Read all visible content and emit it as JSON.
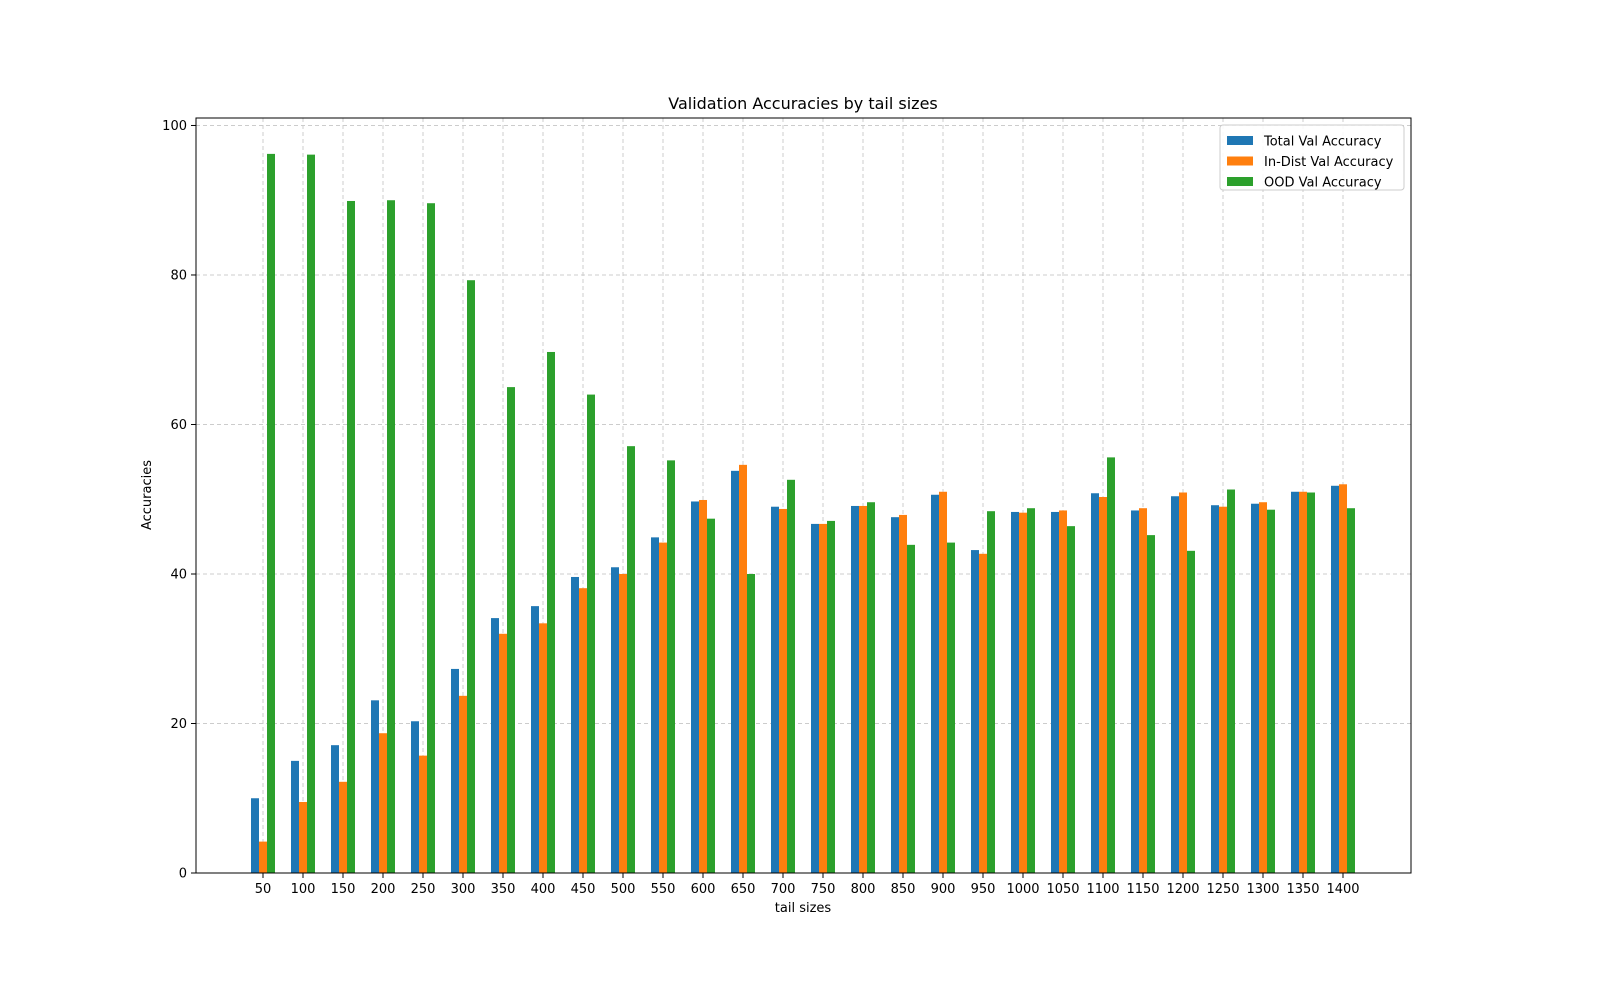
{
  "chart_data": {
    "type": "bar",
    "title": "Validation Accuracies by tail sizes",
    "xlabel": "tail sizes",
    "ylabel": "Accuracies",
    "ylim": [
      0,
      101
    ],
    "yticks": [
      0,
      20,
      40,
      60,
      80,
      100
    ],
    "grid": true,
    "legend_position": "top-right",
    "categories": [
      "50",
      "100",
      "150",
      "200",
      "250",
      "300",
      "350",
      "400",
      "450",
      "500",
      "550",
      "600",
      "650",
      "700",
      "750",
      "800",
      "850",
      "900",
      "950",
      "1000",
      "1050",
      "1100",
      "1150",
      "1200",
      "1250",
      "1300",
      "1350",
      "1400"
    ],
    "series": [
      {
        "name": "Total Val Accuracy",
        "color": "#1f77b4",
        "values": [
          10.0,
          15.0,
          17.1,
          23.1,
          20.3,
          27.3,
          34.1,
          35.7,
          39.6,
          40.9,
          44.9,
          49.7,
          53.8,
          49.0,
          46.7,
          49.1,
          47.6,
          50.6,
          43.2,
          48.3,
          48.3,
          50.8,
          48.5,
          50.4,
          49.2,
          49.4,
          51.0,
          51.8
        ]
      },
      {
        "name": "In-Dist Val Accuracy",
        "color": "#ff7f0e",
        "values": [
          4.2,
          9.5,
          12.2,
          18.7,
          15.7,
          23.7,
          32.0,
          33.4,
          38.1,
          40.0,
          44.2,
          49.9,
          54.6,
          48.7,
          46.7,
          49.1,
          47.9,
          51.0,
          42.7,
          48.2,
          48.5,
          50.3,
          48.8,
          50.9,
          49.0,
          49.6,
          51.0,
          52.0
        ]
      },
      {
        "name": "OOD Val Accuracy",
        "color": "#2ca02c",
        "values": [
          96.2,
          96.1,
          89.9,
          90.0,
          89.6,
          79.3,
          65.0,
          69.7,
          64.0,
          57.1,
          55.2,
          47.4,
          40.0,
          52.6,
          47.1,
          49.6,
          43.9,
          44.2,
          48.4,
          48.8,
          46.4,
          55.6,
          45.2,
          43.1,
          51.3,
          48.6,
          50.9,
          48.8
        ]
      }
    ]
  }
}
